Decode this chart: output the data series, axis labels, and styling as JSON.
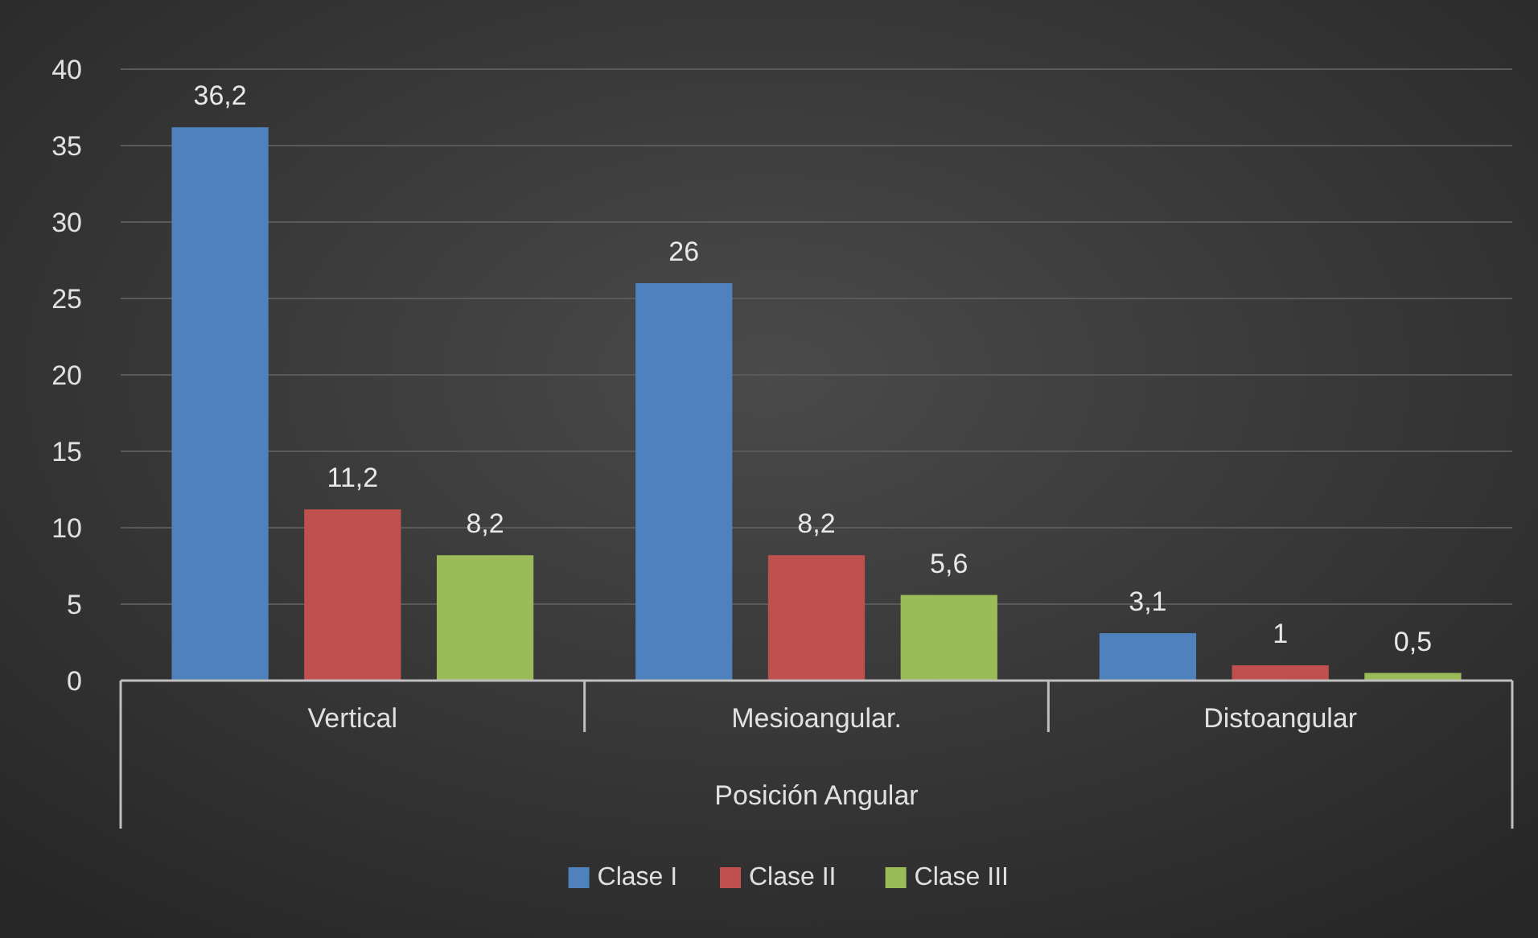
{
  "chart_data": {
    "type": "bar",
    "xlabel": "Posición Angular",
    "categories": [
      "Vertical",
      "Mesioangular.",
      "Distoangular"
    ],
    "series": [
      {
        "name": "Clase I",
        "color": "#4f81bd",
        "values": [
          36.2,
          26,
          3.1
        ],
        "value_labels": [
          "36,2",
          "26",
          "3,1"
        ]
      },
      {
        "name": "Clase II",
        "color": "#c0504d",
        "values": [
          11.2,
          8.2,
          1
        ],
        "value_labels": [
          "11,2",
          "8,2",
          "1"
        ]
      },
      {
        "name": "Clase III",
        "color": "#9bbb59",
        "values": [
          8.2,
          5.6,
          0.5
        ],
        "value_labels": [
          "8,2",
          "5,6",
          "0,5"
        ]
      }
    ],
    "ylim": [
      0,
      40
    ],
    "yticks": [
      0,
      5,
      10,
      15,
      20,
      25,
      30,
      35,
      40
    ],
    "grid": "y",
    "legend": "bottom"
  }
}
